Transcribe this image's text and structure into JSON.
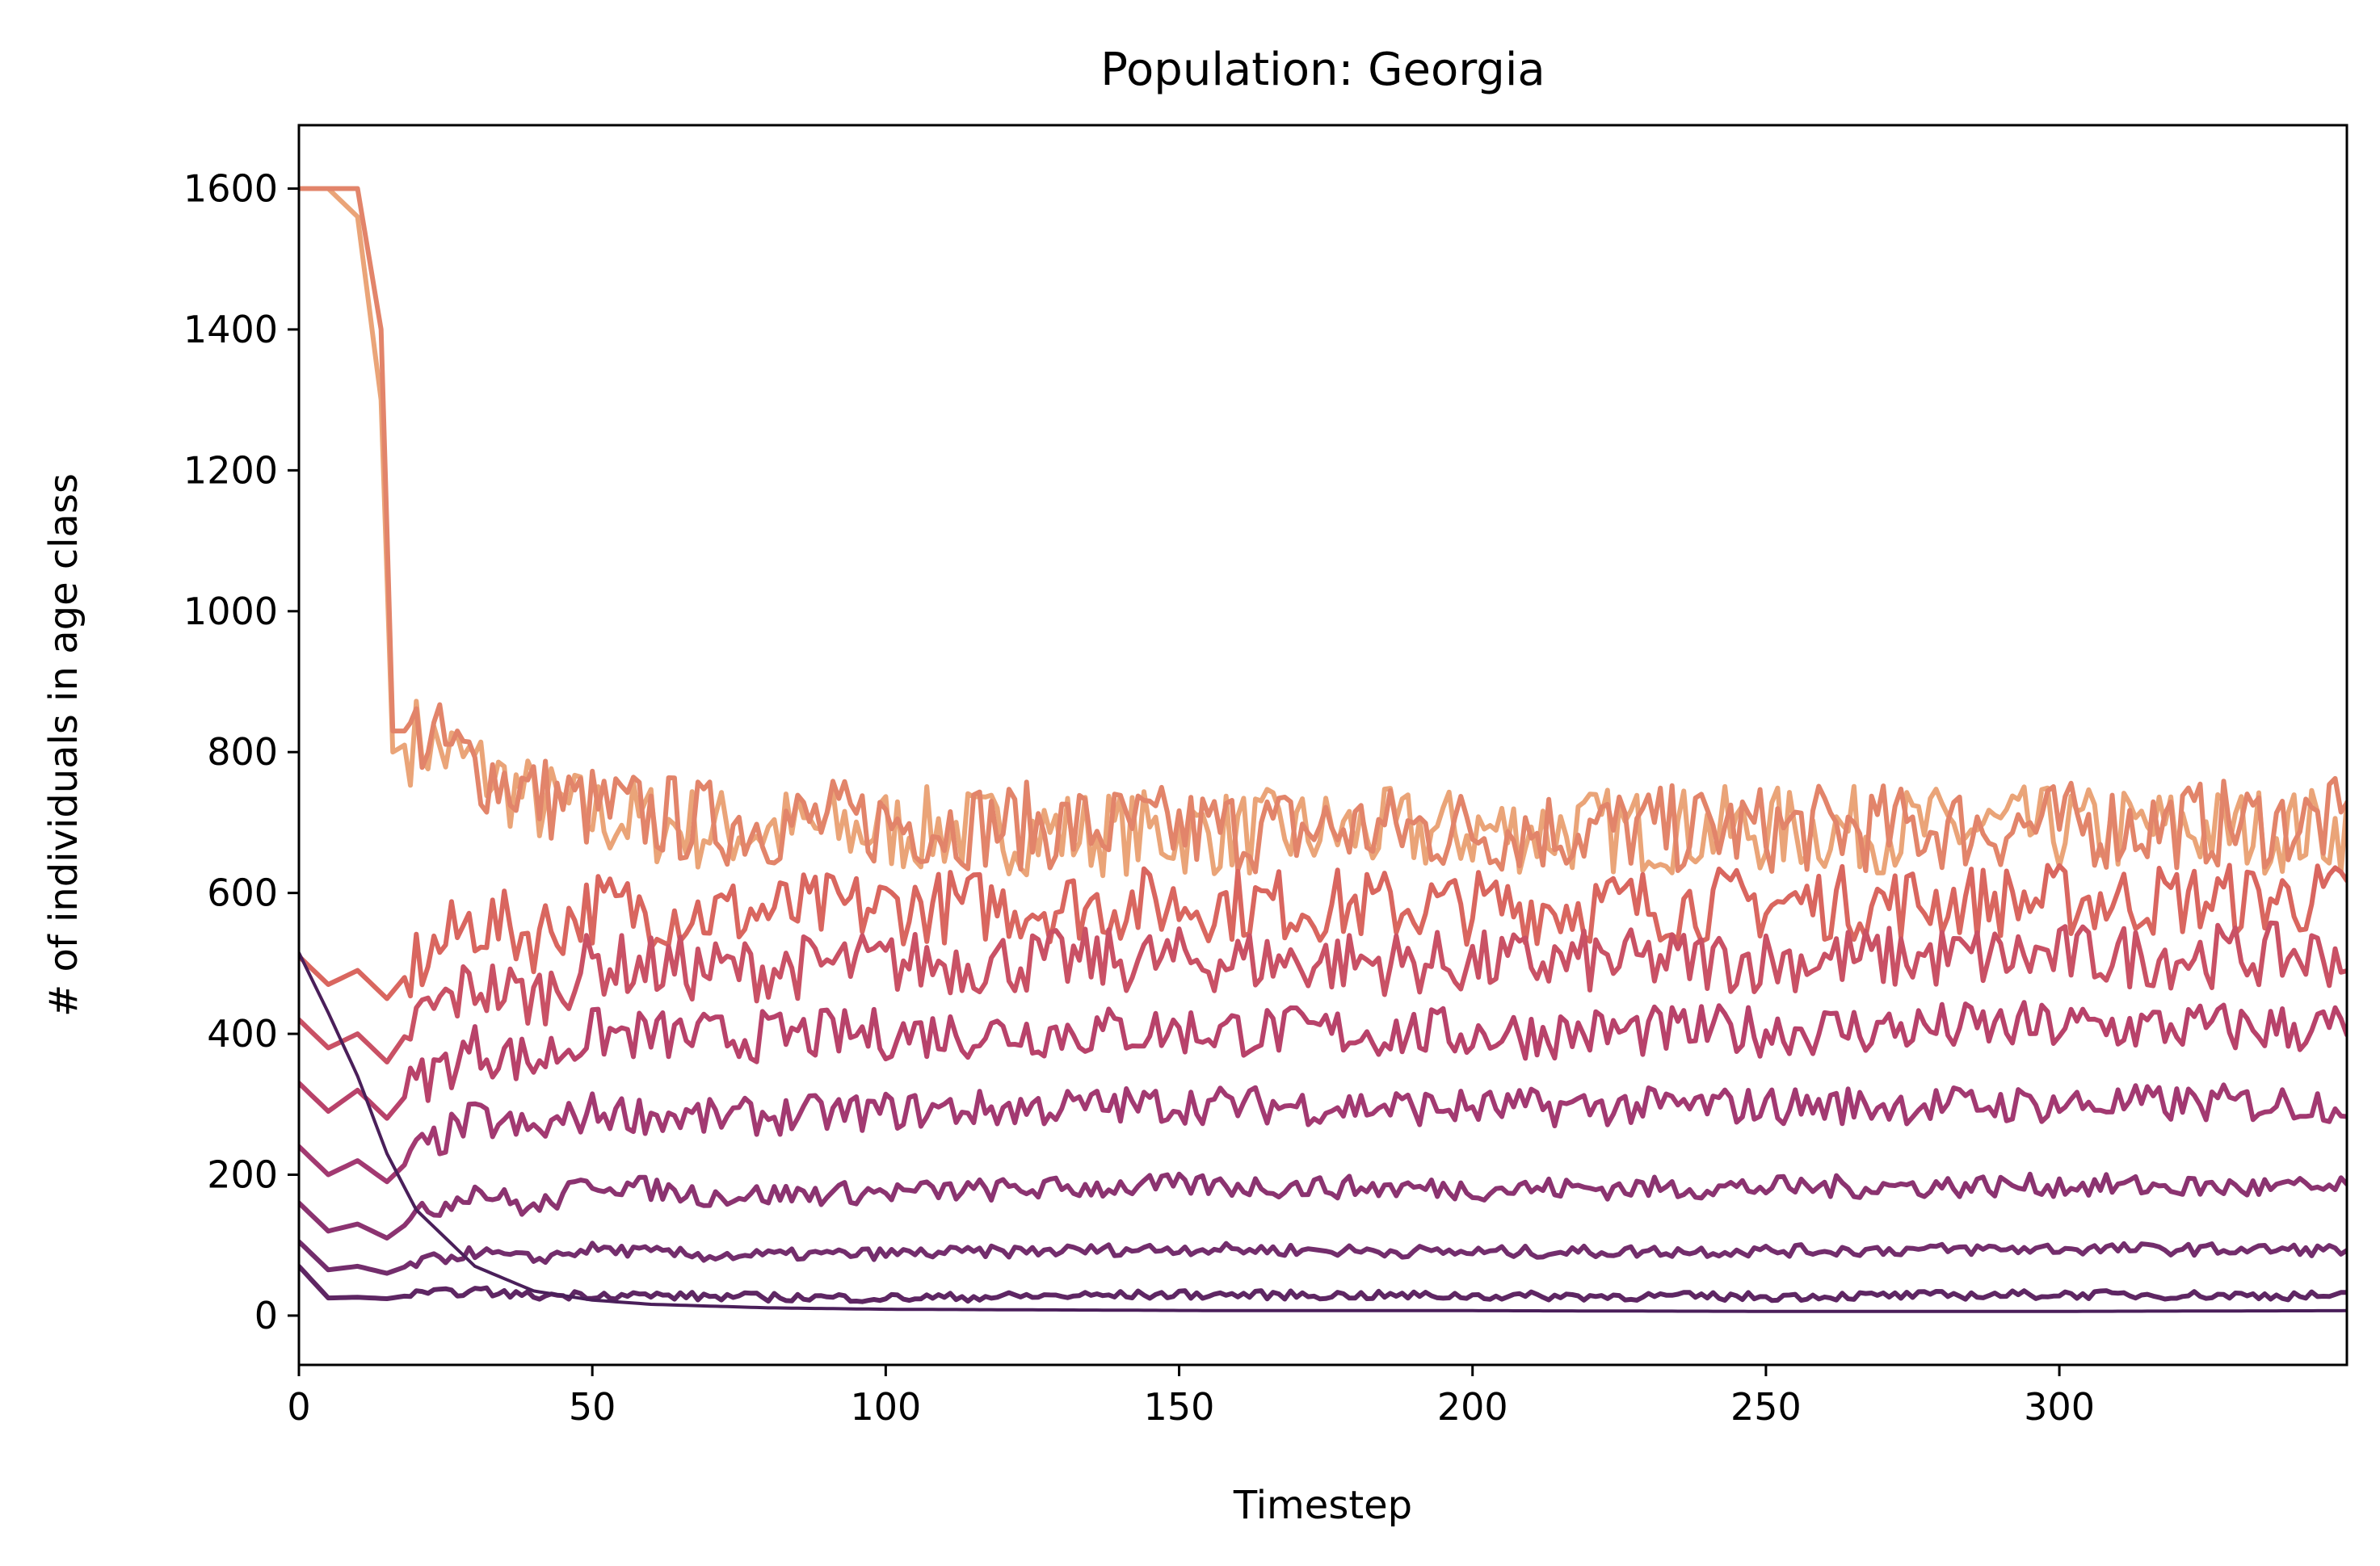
{
  "chart_data": {
    "type": "line",
    "title": "Population: Georgia",
    "xlabel": "Timestep",
    "ylabel": "# of individuals in age class",
    "xlim": [
      0,
      349
    ],
    "ylim": [
      -70,
      1690
    ],
    "xticks": [
      0,
      50,
      100,
      150,
      200,
      250,
      300
    ],
    "yticks": [
      0,
      200,
      400,
      600,
      800,
      1000,
      1200,
      1400,
      1600
    ],
    "grid": false,
    "legend": "none",
    "colormap": [
      "#eaa478",
      "#dc6a5e",
      "#c04568",
      "#9a3673",
      "#6e2c6b",
      "#4a1f5a"
    ],
    "series": [
      {
        "x": [
          0,
          5,
          10,
          15,
          20,
          30,
          40,
          50,
          60,
          80,
          100,
          130,
          160,
          200,
          250,
          300,
          349
        ],
        "values": [
          515,
          430,
          340,
          230,
          150,
          70,
          35,
          22,
          16,
          11,
          9,
          8,
          7,
          7,
          6,
          6,
          7
        ]
      },
      {
        "x": [
          0,
          5,
          10,
          15,
          20,
          30,
          40,
          50,
          70,
          100,
          150,
          200,
          250,
          300,
          349
        ],
        "values": [
          70,
          25,
          26,
          24,
          30,
          35,
          28,
          30,
          27,
          25,
          30,
          28,
          27,
          30,
          28
        ]
      },
      {
        "x": [
          0,
          5,
          10,
          15,
          20,
          30,
          40,
          50,
          70,
          100,
          150,
          200,
          250,
          300,
          349
        ],
        "values": [
          105,
          65,
          70,
          60,
          75,
          90,
          80,
          95,
          85,
          88,
          95,
          90,
          92,
          95,
          93
        ]
      },
      {
        "x": [
          0,
          5,
          10,
          15,
          20,
          30,
          40,
          50,
          70,
          100,
          150,
          200,
          250,
          300,
          349
        ],
        "values": [
          160,
          120,
          130,
          110,
          140,
          180,
          150,
          190,
          170,
          175,
          185,
          180,
          182,
          185,
          180
        ]
      },
      {
        "x": [
          0,
          5,
          10,
          15,
          20,
          30,
          40,
          50,
          70,
          100,
          150,
          200,
          250,
          300,
          349
        ],
        "values": [
          240,
          200,
          220,
          190,
          230,
          280,
          260,
          290,
          280,
          290,
          300,
          295,
          298,
          300,
          302
        ]
      },
      {
        "x": [
          0,
          5,
          10,
          15,
          20,
          30,
          40,
          50,
          70,
          100,
          150,
          200,
          250,
          300,
          349
        ],
        "values": [
          330,
          290,
          320,
          280,
          330,
          380,
          360,
          400,
          395,
          400,
          405,
          400,
          405,
          410,
          408
        ]
      },
      {
        "x": [
          0,
          5,
          10,
          15,
          20,
          30,
          40,
          50,
          70,
          100,
          150,
          200,
          250,
          300,
          349
        ],
        "values": [
          420,
          380,
          400,
          360,
          420,
          470,
          450,
          500,
          490,
          500,
          505,
          500,
          505,
          510,
          512
        ]
      },
      {
        "x": [
          0,
          5,
          10,
          15,
          20,
          30,
          40,
          50,
          70,
          100,
          150,
          200,
          250,
          300,
          349
        ],
        "values": [
          510,
          470,
          490,
          450,
          500,
          560,
          540,
          580,
          570,
          580,
          585,
          580,
          585,
          590,
          592
        ]
      },
      {
        "x": [
          0,
          5,
          10,
          14,
          16,
          20,
          30,
          40,
          50,
          70,
          100,
          150,
          200,
          250,
          300,
          349
        ],
        "values": [
          1600,
          1600,
          1600,
          1400,
          830,
          830,
          780,
          740,
          720,
          700,
          700,
          690,
          690,
          690,
          695,
          700
        ]
      },
      {
        "x": [
          0,
          5,
          10,
          14,
          16,
          20,
          30,
          40,
          50,
          70,
          100,
          150,
          200,
          250,
          300,
          349
        ],
        "values": [
          1600,
          1600,
          1560,
          1300,
          800,
          820,
          780,
          730,
          710,
          690,
          690,
          685,
          688,
          690,
          690,
          690
        ]
      }
    ]
  }
}
